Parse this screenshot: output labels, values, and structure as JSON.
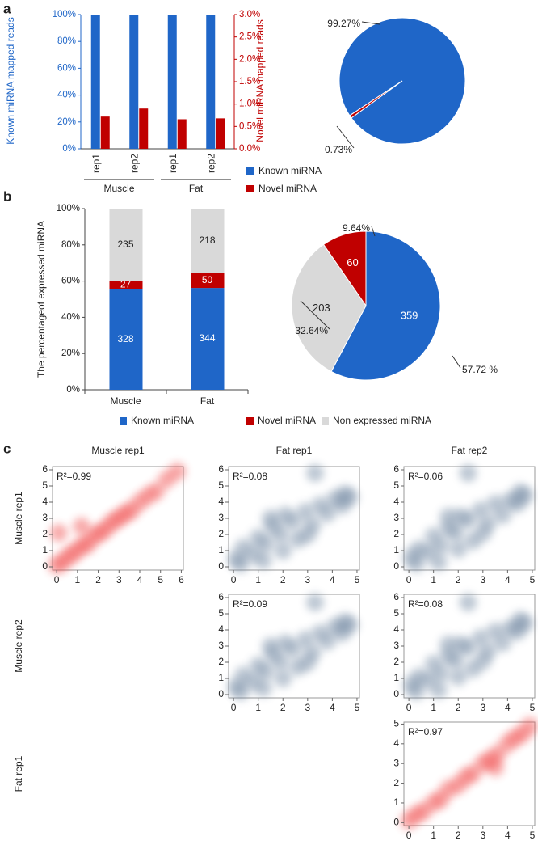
{
  "panels": [
    "a",
    "b",
    "c"
  ],
  "grid_labels": {
    "columns": [
      "Muscle rep1",
      "Fat rep1",
      "Fat rep2"
    ],
    "rows": [
      "Muscle rep1",
      "Muscle rep2",
      "Fat rep1"
    ]
  },
  "chart_data": [
    {
      "type": "bar",
      "categories": [
        "rep1",
        "rep2",
        "rep1",
        "rep2"
      ],
      "groups": [
        "Muscle",
        "Fat"
      ],
      "ylabel": "Known miRNA mapped reads",
      "y2label": "Novel miRNA mapped reads",
      "ylim": [
        0,
        100
      ],
      "yticks": [
        {
          "value": 0,
          "label": "0%"
        },
        {
          "value": 20,
          "label": "20%"
        },
        {
          "value": 40,
          "label": "40%"
        },
        {
          "value": 60,
          "label": "60%"
        },
        {
          "value": 80,
          "label": "80%"
        },
        {
          "value": 100,
          "label": "100%"
        }
      ],
      "y2lim": [
        0,
        3
      ],
      "y2ticks": [
        {
          "value": 0,
          "label": "0.0%"
        },
        {
          "value": 0.5,
          "label": "0.5%"
        },
        {
          "value": 1,
          "label": "1.0%"
        },
        {
          "value": 1.5,
          "label": "1.5%"
        },
        {
          "value": 2,
          "label": "2.0%"
        },
        {
          "value": 2.5,
          "label": "2.5%"
        },
        {
          "value": 3,
          "label": "3.0%"
        }
      ],
      "series": [
        {
          "name": "Known miRNA",
          "color": "#1f66c8",
          "values": [
            100,
            100,
            100,
            100
          ]
        },
        {
          "name": "Novel miRNA",
          "color": "#c00000",
          "axis": "y2",
          "values": [
            0.72,
            0.9,
            0.66,
            0.68
          ]
        }
      ]
    },
    {
      "type": "pie",
      "values": [
        99.27,
        0.73
      ],
      "value_labels": [
        "99.27%",
        "0.73%"
      ],
      "colors": [
        "#1f66c8",
        "#c00000"
      ]
    },
    {
      "type": "stacked_bar",
      "normalize": true,
      "categories": [
        "Muscle",
        "Fat"
      ],
      "ylabel": "The percentageof expressed miRNA",
      "ylim": [
        0,
        100
      ],
      "yticks": [
        {
          "value": 0,
          "label": "0%"
        },
        {
          "value": 20,
          "label": "20%"
        },
        {
          "value": 40,
          "label": "40%"
        },
        {
          "value": 60,
          "label": "60%"
        },
        {
          "value": 80,
          "label": "80%"
        },
        {
          "value": 100,
          "label": "100%"
        }
      ],
      "series": [
        {
          "name": "Known miRNA",
          "color": "#1f66c8",
          "values": [
            328,
            344
          ]
        },
        {
          "name": "Novel miRNA",
          "color": "#c00000",
          "values": [
            27,
            50
          ]
        },
        {
          "name": "Non expressed miRNA",
          "color": "#d9d9d9",
          "values": [
            235,
            218
          ]
        }
      ]
    },
    {
      "type": "pie",
      "values": [
        359,
        203,
        60
      ],
      "colors": [
        "#1f66c8",
        "#d9d9d9",
        "#c00000"
      ],
      "percent_labels": [
        "57.72 %",
        "32.64%",
        "9.64%"
      ]
    },
    {
      "type": "scatter",
      "annotation": "R²=0.99",
      "color": "#f04848",
      "xlim": [
        -0.2,
        6.1
      ],
      "ylim": [
        -0.2,
        6.2
      ],
      "xticks": [
        0,
        1,
        2,
        3,
        4,
        5,
        6
      ],
      "yticks": [
        0,
        1,
        2,
        3,
        4,
        5,
        6
      ],
      "x": [
        0,
        0.3,
        0.6,
        0.9,
        1.2,
        1.5,
        1.8,
        2.1,
        2.4,
        2.7,
        3,
        3.3,
        3.6,
        4,
        4.4,
        4.8,
        5.3,
        5.8,
        0.1,
        1.2
      ],
      "y": [
        0.1,
        0.3,
        0.7,
        0.9,
        1.3,
        1.4,
        1.9,
        2.1,
        2.4,
        2.8,
        3,
        3.3,
        3.5,
        4,
        4.4,
        4.7,
        5.4,
        5.9,
        2.1,
        2.5
      ]
    },
    {
      "type": "scatter",
      "annotation": "R²=0.08",
      "color": "#6f86a0",
      "xlim": [
        -0.2,
        5.1
      ],
      "ylim": [
        -0.2,
        6.2
      ],
      "xticks": [
        0,
        1,
        2,
        3,
        4,
        5
      ],
      "yticks": [
        0,
        1,
        2,
        3,
        4,
        5,
        6
      ],
      "x": [
        0.1,
        0.4,
        0.8,
        1,
        1.3,
        1.6,
        1.9,
        2.1,
        2.4,
        2.6,
        2.9,
        3.2,
        3.5,
        3.8,
        4.1,
        4.4,
        4.7,
        0.3,
        1.2,
        2,
        3,
        3.3,
        4.5,
        1.5
      ],
      "y": [
        0.5,
        1.2,
        0.8,
        1.8,
        1.4,
        2.5,
        2,
        3.2,
        2.8,
        1.7,
        3.4,
        2.6,
        3.8,
        3.3,
        4.2,
        3.8,
        4.3,
        0.2,
        0.4,
        1,
        2,
        5.8,
        4.5,
        3
      ]
    },
    {
      "type": "scatter",
      "annotation": "R²=0.06",
      "color": "#6f86a0",
      "xlim": [
        -0.2,
        5.1
      ],
      "ylim": [
        -0.2,
        6.2
      ],
      "xticks": [
        0,
        1,
        2,
        3,
        4,
        5
      ],
      "yticks": [
        0,
        1,
        2,
        3,
        4,
        5,
        6
      ],
      "x": [
        0.1,
        0.4,
        0.8,
        1,
        1.3,
        1.6,
        1.9,
        2.1,
        2.4,
        2.6,
        2.9,
        3.2,
        3.5,
        3.8,
        4.1,
        4.4,
        4.7,
        0.3,
        1.2,
        2,
        3,
        2.4,
        4.5,
        1.6
      ],
      "y": [
        0.6,
        1.1,
        0.9,
        1.9,
        1.3,
        2.4,
        2.1,
        3.1,
        2.9,
        1.6,
        3.5,
        2.7,
        3.9,
        3.2,
        4.1,
        3.9,
        4.4,
        0.2,
        0.3,
        1.1,
        2.1,
        5.8,
        4.6,
        3.1
      ]
    },
    {
      "type": "scatter",
      "annotation": "R²=0.09",
      "color": "#6f86a0",
      "xlim": [
        -0.2,
        5.1
      ],
      "ylim": [
        -0.2,
        6.2
      ],
      "xticks": [
        0,
        1,
        2,
        3,
        4,
        5
      ],
      "yticks": [
        0,
        1,
        2,
        3,
        4,
        5,
        6
      ],
      "x": [
        0.1,
        0.4,
        0.8,
        1,
        1.3,
        1.6,
        1.9,
        2.1,
        2.4,
        2.6,
        2.9,
        3.2,
        3.5,
        3.8,
        4.1,
        4.4,
        4.7,
        0.3,
        1.2,
        2,
        3,
        3.3,
        4.5,
        1.5
      ],
      "y": [
        0.5,
        1.2,
        0.8,
        1.8,
        1.4,
        2.5,
        2,
        3.2,
        2.8,
        1.7,
        3.4,
        2.6,
        3.8,
        3.3,
        4.2,
        3.8,
        4.3,
        0.2,
        0.4,
        1,
        2,
        5.7,
        4.5,
        3
      ]
    },
    {
      "type": "scatter",
      "annotation": "R²=0.08",
      "color": "#6f86a0",
      "xlim": [
        -0.2,
        5.1
      ],
      "ylim": [
        -0.2,
        6.2
      ],
      "xticks": [
        0,
        1,
        2,
        3,
        4,
        5
      ],
      "yticks": [
        0,
        1,
        2,
        3,
        4,
        5,
        6
      ],
      "x": [
        0.1,
        0.4,
        0.8,
        1,
        1.3,
        1.6,
        1.9,
        2.1,
        2.4,
        2.6,
        2.9,
        3.2,
        3.5,
        3.8,
        4.1,
        4.4,
        4.7,
        0.3,
        1.2,
        2,
        3,
        2.4,
        4.5,
        1.6
      ],
      "y": [
        0.6,
        1.1,
        0.9,
        1.9,
        1.3,
        2.4,
        2.1,
        3.1,
        2.9,
        1.6,
        3.5,
        2.7,
        3.9,
        3.2,
        4.1,
        3.9,
        4.4,
        0.2,
        0.3,
        1.1,
        2.1,
        5.7,
        4.6,
        3.1
      ]
    },
    {
      "type": "scatter",
      "annotation": "R²=0.97",
      "color": "#f04848",
      "xlim": [
        -0.2,
        5.1
      ],
      "ylim": [
        -0.15,
        5.1
      ],
      "xticks": [
        0,
        1,
        2,
        3,
        4,
        5
      ],
      "yticks": [
        0,
        1,
        2,
        3,
        4,
        5
      ],
      "x": [
        0,
        0.3,
        0.6,
        1,
        1.3,
        1.6,
        2,
        2.3,
        2.6,
        3,
        3.3,
        3.6,
        4,
        4.3,
        4.6,
        4.9,
        3.5
      ],
      "y": [
        0.1,
        0.4,
        0.6,
        1,
        1.2,
        1.7,
        1.9,
        2.3,
        2.5,
        3,
        3.2,
        3.5,
        4,
        4.3,
        4.5,
        4.9,
        2.8
      ]
    }
  ]
}
